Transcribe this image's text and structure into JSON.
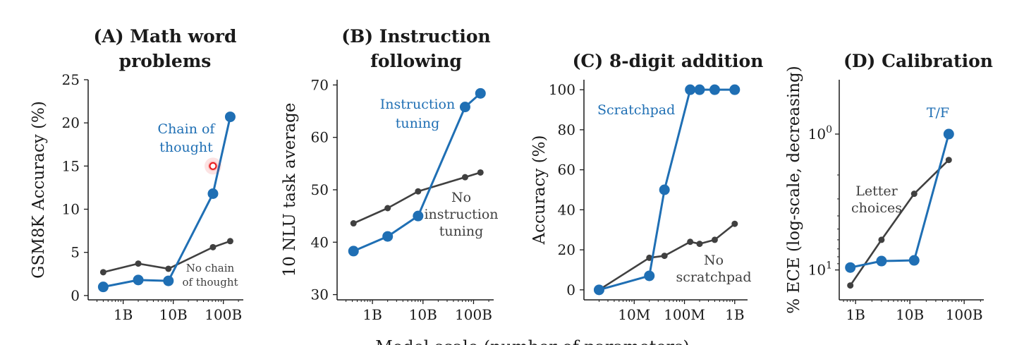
{
  "colors": {
    "blue": "#1f6fb4",
    "gray": "#404040",
    "axis": "#1a1a1a",
    "highlight": "#e8181a"
  },
  "chart_data": [
    {
      "type": "line",
      "panel": "A",
      "title": [
        "(A) Math word",
        "problems"
      ],
      "ylabel": "GSM8K Accuracy (%)",
      "xscale": "log",
      "xlim": [
        200000000.0,
        250000000000.0
      ],
      "ylim": [
        -0.5,
        25
      ],
      "xticks": [
        {
          "v": 1000000000.0,
          "label": "1B"
        },
        {
          "v": 10000000000.0,
          "label": "10B"
        },
        {
          "v": 100000000000.0,
          "label": "100B"
        }
      ],
      "yticks": [
        {
          "v": 0,
          "label": "0"
        },
        {
          "v": 5,
          "label": "5"
        },
        {
          "v": 10,
          "label": "10"
        },
        {
          "v": 15,
          "label": "15"
        },
        {
          "v": 20,
          "label": "20"
        },
        {
          "v": 25,
          "label": "25"
        }
      ],
      "series": [
        {
          "name": "No chain of thought",
          "color": "gray",
          "x": [
            400000000.0,
            2000000000.0,
            8000000000.0,
            62000000000.0,
            137000000000.0
          ],
          "y": [
            2.7,
            3.7,
            3.1,
            5.6,
            6.3
          ]
        },
        {
          "name": "Chain of thought",
          "color": "blue",
          "x": [
            400000000.0,
            2000000000.0,
            8000000000.0,
            62000000000.0,
            137000000000.0
          ],
          "y": [
            1.0,
            1.8,
            1.7,
            11.8,
            20.7
          ]
        }
      ],
      "annotations": [
        {
          "text": [
            "Chain of",
            "thought"
          ],
          "color": "blue",
          "size": "normal"
        },
        {
          "text": [
            "No chain",
            "of thought"
          ],
          "color": "gray",
          "size": "small"
        }
      ],
      "marker": {
        "x": 62000000000.0,
        "y": 15.0
      }
    },
    {
      "type": "line",
      "panel": "B",
      "title": [
        "(B) Instruction",
        "following"
      ],
      "ylabel": "10 NLU task average",
      "xscale": "log",
      "xlim": [
        200000000.0,
        250000000000.0
      ],
      "ylim": [
        29,
        71
      ],
      "xticks": [
        {
          "v": 1000000000.0,
          "label": "1B"
        },
        {
          "v": 10000000000.0,
          "label": "10B"
        },
        {
          "v": 100000000000.0,
          "label": "100B"
        }
      ],
      "yticks": [
        {
          "v": 30,
          "label": "30"
        },
        {
          "v": 40,
          "label": "40"
        },
        {
          "v": 50,
          "label": "50"
        },
        {
          "v": 60,
          "label": "60"
        },
        {
          "v": 70,
          "label": "70"
        }
      ],
      "series": [
        {
          "name": "No instruction tuning",
          "color": "gray",
          "x": [
            422000000.0,
            2000000000.0,
            8000000000.0,
            68000000000.0,
            137000000000.0
          ],
          "y": [
            43.6,
            46.5,
            49.7,
            52.4,
            53.3
          ]
        },
        {
          "name": "Instruction tuning",
          "color": "blue",
          "x": [
            422000000.0,
            2000000000.0,
            8000000000.0,
            68000000000.0,
            137000000000.0
          ],
          "y": [
            38.3,
            41.1,
            45.0,
            65.8,
            68.4
          ]
        }
      ],
      "annotations": [
        {
          "text": [
            "Instruction",
            "tuning"
          ],
          "color": "blue",
          "size": "normal"
        },
        {
          "text": [
            "No",
            "instruction",
            "tuning"
          ],
          "color": "gray",
          "size": "normal"
        }
      ]
    },
    {
      "type": "line",
      "panel": "C",
      "title": [
        "(C) 8-digit addition"
      ],
      "ylabel": "Accuracy (%)",
      "xscale": "log",
      "xlim": [
        1000000.0,
        1800000000.0
      ],
      "ylim": [
        -5,
        105
      ],
      "xticks": [
        {
          "v": 10000000.0,
          "label": "10M"
        },
        {
          "v": 100000000.0,
          "label": "100M"
        },
        {
          "v": 1000000000.0,
          "label": "1B"
        }
      ],
      "yticks": [
        {
          "v": 0,
          "label": "0"
        },
        {
          "v": 20,
          "label": "20"
        },
        {
          "v": 40,
          "label": "40"
        },
        {
          "v": 60,
          "label": "60"
        },
        {
          "v": 80,
          "label": "80"
        },
        {
          "v": 100,
          "label": "100"
        }
      ],
      "series": [
        {
          "name": "No scratchpad",
          "color": "gray",
          "x": [
            2000000.0,
            20000000.0,
            40000000.0,
            130000000.0,
            200000000.0,
            400000000.0,
            1000000000.0
          ],
          "y": [
            0,
            16,
            17,
            24,
            23,
            25,
            33
          ]
        },
        {
          "name": "Scratchpad",
          "color": "blue",
          "x": [
            2000000.0,
            20000000.0,
            40000000.0,
            130000000.0,
            200000000.0,
            400000000.0,
            1000000000.0
          ],
          "y": [
            0,
            7,
            50,
            100,
            100,
            100,
            100
          ]
        }
      ],
      "annotations": [
        {
          "text": [
            "Scratchpad"
          ],
          "color": "blue",
          "size": "normal"
        },
        {
          "text": [
            "No",
            "scratchpad"
          ],
          "color": "gray",
          "size": "normal"
        }
      ]
    },
    {
      "type": "line",
      "panel": "D",
      "title": [
        "(D) Calibration"
      ],
      "ylabel": "% ECE (log-scale, decreasing)",
      "xscale": "log",
      "yscale": "log-decreasing",
      "xlim": [
        500000000.0,
        230000000000.0
      ],
      "ylim_log10": [
        -0.4,
        1.22
      ],
      "xticks": [
        {
          "v": 1000000000.0,
          "label": "1B"
        },
        {
          "v": 10000000000.0,
          "label": "10B"
        },
        {
          "v": 100000000000.0,
          "label": "100B"
        }
      ],
      "yticks": [
        {
          "v": 1,
          "label": "10^0",
          "base": "10",
          "exp": "0"
        },
        {
          "v": 10,
          "label": "10^1",
          "base": "10",
          "exp": "1"
        }
      ],
      "series": [
        {
          "name": "Letter choices",
          "color": "gray",
          "x": [
            800000000.0,
            3000000000.0,
            12000000000.0,
            52000000000.0
          ],
          "y": [
            13,
            6.0,
            2.75,
            1.55
          ]
        },
        {
          "name": "T/F",
          "color": "blue",
          "x": [
            800000000.0,
            3000000000.0,
            12000000000.0,
            52000000000.0
          ],
          "y": [
            9.6,
            8.6,
            8.5,
            1.0
          ]
        }
      ],
      "annotations": [
        {
          "text": [
            "T/F"
          ],
          "color": "blue",
          "size": "normal"
        },
        {
          "text": [
            "Letter",
            "choices"
          ],
          "color": "gray",
          "size": "normal"
        }
      ]
    }
  ],
  "footer_xlabel": "Model scale (number of parameters)"
}
